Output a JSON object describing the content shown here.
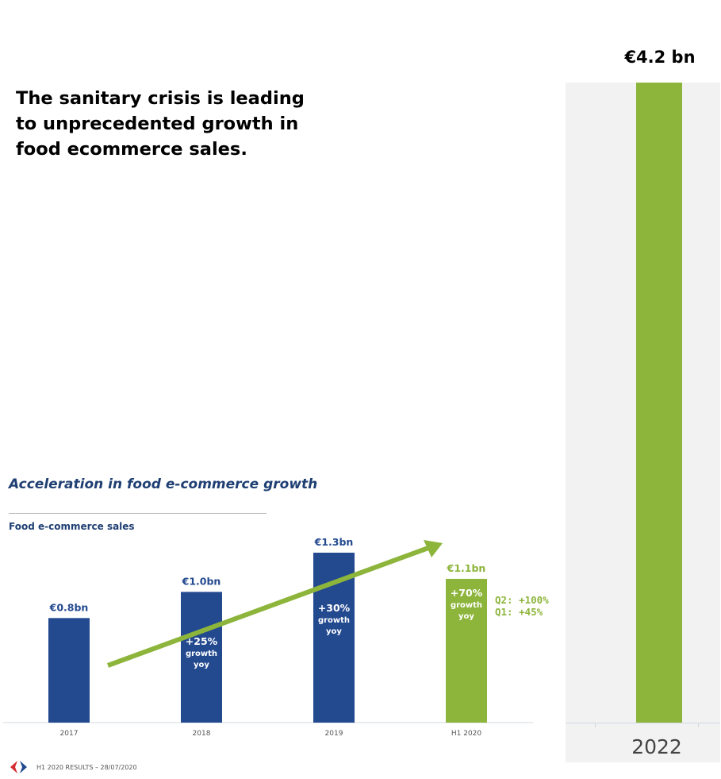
{
  "headline": "The sanitary crisis is leading\nto unprecedented growth in\nfood ecommerce sales.",
  "section_title": "Acceleration in food e-commerce growth",
  "chart_title": "Food e-commerce sales",
  "quarter_notes": [
    "Q2: +100%",
    "Q1: +45%"
  ],
  "footer": "H1 2020 RESULTS – 28/07/2020",
  "logo_icon": "carrefour-logo-icon",
  "colors": {
    "navy": "#23498f",
    "green": "#8db53c",
    "title": "#1f3f73",
    "panel": "#f2f2f2"
  },
  "chart_data": [
    {
      "type": "bar",
      "title": "Food e-commerce sales",
      "categories": [
        "2017",
        "2018",
        "2019",
        "H1 2020"
      ],
      "values": [
        0.8,
        1.0,
        1.3,
        1.1
      ],
      "value_labels": [
        "€0.8bn",
        "€1.0bn",
        "€1.3bn",
        "€1.1bn"
      ],
      "bar_colors": [
        "#23498f",
        "#23498f",
        "#23498f",
        "#8db53c"
      ],
      "growth_labels": [
        "",
        "+25%\ngrowth\nyoy",
        "+30%\ngrowth\nyoy",
        "+70%\ngrowth\nyoy"
      ],
      "ylim": [
        0,
        1.3
      ],
      "trend_arrow": true
    },
    {
      "type": "bar",
      "categories": [
        "2022"
      ],
      "values": [
        4.2
      ],
      "value_labels": [
        "€4.2 bn"
      ],
      "bar_colors": [
        "#8db53c"
      ]
    }
  ]
}
